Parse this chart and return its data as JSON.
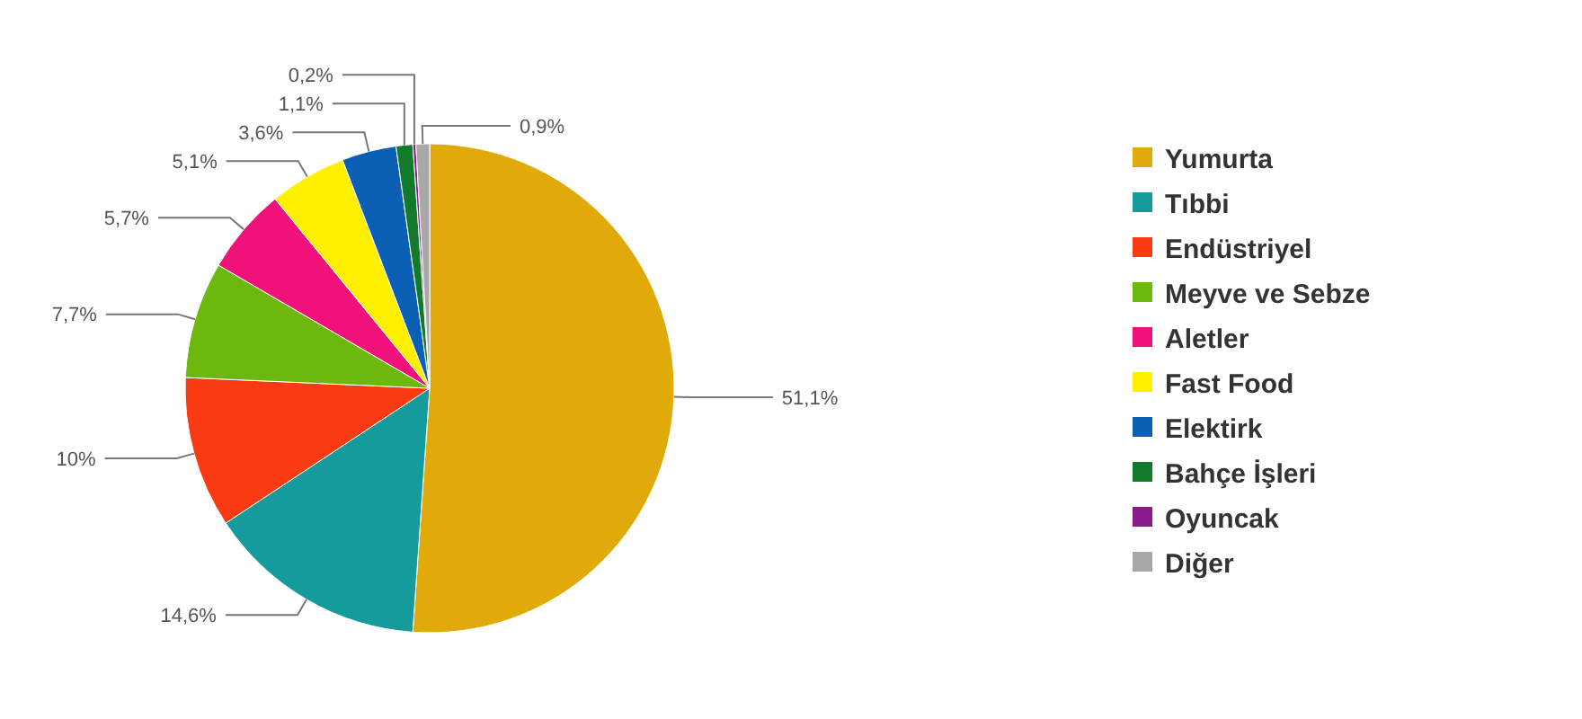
{
  "chart_data": {
    "type": "pie",
    "categories": [
      "Yumurta",
      "Tıbbi",
      "Endüstriyel",
      "Meyve ve Sebze",
      "Aletler",
      "Fast Food",
      "Elektirk",
      "Bahçe İşleri",
      "Oyuncak",
      "Diğer"
    ],
    "values": [
      51.1,
      14.6,
      10,
      7.7,
      5.7,
      5.1,
      3.6,
      1.1,
      0.2,
      0.9
    ],
    "colors": [
      "#e0aa0a",
      "#169b9d",
      "#fa3a12",
      "#6cb80e",
      "#f0117a",
      "#fff000",
      "#0b5fb4",
      "#127a2a",
      "#8a1a8a",
      "#a8a8a8"
    ],
    "value_labels": [
      "51,1%",
      "14,6%",
      "10%",
      "7,7%",
      "5,7%",
      "5,1%",
      "3,6%",
      "1,1%",
      "0,2%",
      "0,9%"
    ],
    "legend": "right"
  }
}
